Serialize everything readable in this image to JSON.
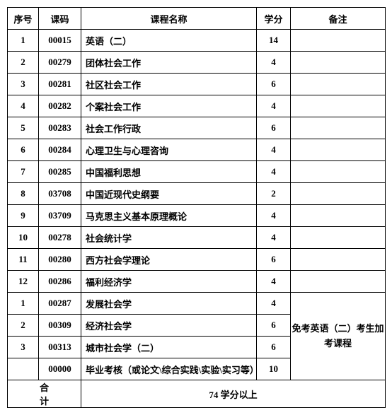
{
  "headers": {
    "seq": "序号",
    "code": "课码",
    "name": "课程名称",
    "credit": "学分",
    "remark": "备注"
  },
  "rows": [
    {
      "seq": "1",
      "code": "00015",
      "name": "英语（二）",
      "credit": "14"
    },
    {
      "seq": "2",
      "code": "00279",
      "name": "团体社会工作",
      "credit": "4"
    },
    {
      "seq": "3",
      "code": "00281",
      "name": "社区社会工作",
      "credit": "6"
    },
    {
      "seq": "4",
      "code": "00282",
      "name": "个案社会工作",
      "credit": "4"
    },
    {
      "seq": "5",
      "code": "00283",
      "name": "社会工作行政",
      "credit": "6"
    },
    {
      "seq": "6",
      "code": "00284",
      "name": "心理卫生与心理咨询",
      "credit": "4"
    },
    {
      "seq": "7",
      "code": "00285",
      "name": "中国福利思想",
      "credit": "4"
    },
    {
      "seq": "8",
      "code": "03708",
      "name": "中国近现代史纲要",
      "credit": "2"
    },
    {
      "seq": "9",
      "code": "03709",
      "name": "马克思主义基本原理概论",
      "credit": "4"
    },
    {
      "seq": "10",
      "code": "00278",
      "name": "社会统计学",
      "credit": "4"
    },
    {
      "seq": "11",
      "code": "00280",
      "name": "西方社会学理论",
      "credit": "6"
    },
    {
      "seq": "12",
      "code": "00286",
      "name": "福利经济学",
      "credit": "4"
    },
    {
      "seq": "1",
      "code": "00287",
      "name": "发展社会学",
      "credit": "4"
    },
    {
      "seq": "2",
      "code": "00309",
      "name": "经济社会学",
      "credit": "6"
    },
    {
      "seq": "3",
      "code": "00313",
      "name": "城市社会学（二）",
      "credit": "6"
    },
    {
      "seq": "",
      "code": "00000",
      "name": "毕业考核（或论文\\综合实践\\实验\\实习等）",
      "credit": "10"
    }
  ],
  "remark_group": "免考英语（二）考生加考课程",
  "total": {
    "label": "合计",
    "value": "74 学分以上"
  }
}
